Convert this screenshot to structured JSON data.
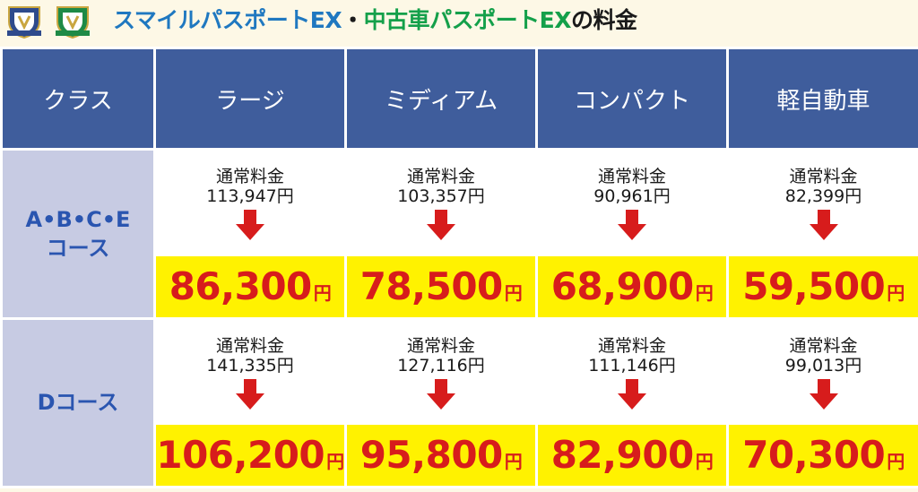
{
  "title": {
    "part1": "スマイルパスポートEX",
    "sep": "・",
    "part2": "中古車パスポートEX",
    "part3": "の料金"
  },
  "table": {
    "headers": [
      "クラス",
      "ラージ",
      "ミディアム",
      "コンパクト",
      "軽自動車"
    ],
    "rows": [
      {
        "label_line1": "A•B•C•E",
        "label_line2": "コース",
        "cells": [
          {
            "regular_label": "通常料金",
            "regular_price": "113,947円",
            "sale_price": "86,300",
            "sale_unit": "円"
          },
          {
            "regular_label": "通常料金",
            "regular_price": "103,357円",
            "sale_price": "78,500",
            "sale_unit": "円"
          },
          {
            "regular_label": "通常料金",
            "regular_price": "90,961円",
            "sale_price": "68,900",
            "sale_unit": "円"
          },
          {
            "regular_label": "通常料金",
            "regular_price": "82,399円",
            "sale_price": "59,500",
            "sale_unit": "円"
          }
        ]
      },
      {
        "label_line1": "Dコース",
        "label_line2": "",
        "cells": [
          {
            "regular_label": "通常料金",
            "regular_price": "141,335円",
            "sale_price": "106,200",
            "sale_unit": "円"
          },
          {
            "regular_label": "通常料金",
            "regular_price": "127,116円",
            "sale_price": "95,800",
            "sale_unit": "円"
          },
          {
            "regular_label": "通常料金",
            "regular_price": "111,146円",
            "sale_price": "82,900",
            "sale_unit": "円"
          },
          {
            "regular_label": "通常料金",
            "regular_price": "99,013円",
            "sale_price": "70,300",
            "sale_unit": "円"
          }
        ]
      }
    ]
  },
  "colors": {
    "header_bg": "#3f5d9c",
    "row_label_bg": "#c7cbe3",
    "row_label_text": "#2a55b0",
    "sale_bg": "#fff200",
    "sale_text": "#d71c1c",
    "arrow": "#d71c1c",
    "title_blue": "#1f78c0",
    "title_green": "#14a04a"
  },
  "icons": {
    "logo1": "shield-emblem-logo",
    "logo2": "shield-emblem-logo",
    "arrow": "down-arrow-icon"
  }
}
